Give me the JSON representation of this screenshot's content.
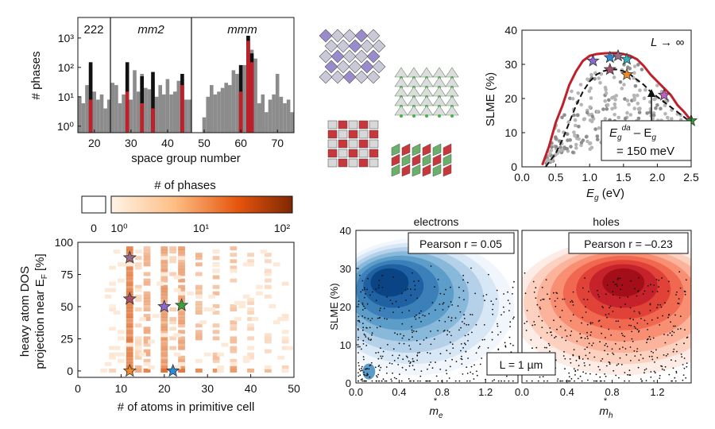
{
  "panel_a": {
    "ylabel": "# phases",
    "xlabel": "space group number",
    "groups": [
      "222",
      "mm2",
      "mmm"
    ],
    "yticks": [
      "10⁰",
      "10¹",
      "10²",
      "10³"
    ],
    "xticks": [
      "20",
      "30",
      "40",
      "50",
      "60",
      "70"
    ]
  },
  "panel_b": {
    "colorbar_title": "# of phases",
    "colorbar_zero": "0",
    "colorbar_ticks": [
      "10⁰",
      "10¹",
      "10²"
    ],
    "ylabel_line1": "heavy atom DOS",
    "ylabel_line2": "projection near E",
    "ylabel_sub": "F",
    "ylabel_tail": " [%]",
    "xlabel": "# of atoms in primitive cell",
    "xticks": [
      "0",
      "10",
      "20",
      "30",
      "40",
      "50"
    ],
    "yticks": [
      "0",
      "25",
      "50",
      "75",
      "100"
    ]
  },
  "panel_c": {
    "annotation": "L → ∞",
    "ylabel": "SLME (%)",
    "xlabel_main": "E",
    "xlabel_sub": "g",
    "xlabel_tail": " (eV)",
    "box_line1": "E",
    "box_line1_sub": "g",
    "box_line1_sup": "da",
    "box_line1_tail": " – E",
    "box_line1_sub2": "g",
    "box_line2": "= 150 meV",
    "xticks": [
      "0.0",
      "0.5",
      "1.0",
      "1.5",
      "2.0",
      "2.5"
    ],
    "yticks": [
      "0",
      "10",
      "20",
      "30",
      "40"
    ]
  },
  "panel_d": {
    "title_left": "electrons",
    "title_right": "holes",
    "ylabel": "SLME (%)",
    "pearson_left": "Pearson r = 0.05",
    "pearson_right": "Pearson r = –0.23",
    "thickness": "L = 1 µm",
    "xlabel_left": "m",
    "xlabel_left_sub": "e",
    "xlabel_right": "m",
    "xlabel_right_sub": "h",
    "star": "*",
    "xticks_left": [
      "0.0",
      "0.4",
      "0.8",
      "1.2"
    ],
    "xticks_right": [
      "0.0",
      "0.4",
      "0.8",
      "1.2"
    ],
    "yticks": [
      "0",
      "10",
      "20",
      "30",
      "40"
    ]
  },
  "colors": {
    "gray": "#8c8c8c",
    "black": "#111111",
    "red": "#c0202a",
    "orange_dark": "#8a2d05",
    "orange_light": "#fde3c8",
    "blue_dark": "#08306b",
    "red_dark": "#a50f15"
  },
  "chart_data": [
    {
      "type": "bar",
      "panel": "a",
      "xlabel": "space group number",
      "ylabel": "# phases",
      "yscale": "log",
      "xlim": [
        16,
        74
      ],
      "ylim": [
        1,
        3000
      ],
      "x": [
        16,
        17,
        18,
        19,
        20,
        21,
        22,
        23,
        24,
        25,
        26,
        27,
        28,
        29,
        30,
        31,
        32,
        33,
        34,
        35,
        36,
        37,
        38,
        39,
        40,
        41,
        42,
        43,
        44,
        45,
        46,
        47,
        48,
        49,
        50,
        51,
        52,
        53,
        54,
        55,
        56,
        57,
        58,
        59,
        60,
        61,
        62,
        63,
        64,
        65,
        66,
        67,
        68,
        69,
        70,
        71,
        72,
        73,
        74
      ],
      "series": [
        {
          "name": "gray",
          "values": [
            10,
            6,
            25,
            120,
            15,
            8,
            12,
            4,
            8,
            30,
            25,
            6,
            12,
            60,
            8,
            80,
            15,
            60,
            20,
            18,
            40,
            10,
            25,
            12,
            40,
            12,
            15,
            35,
            40,
            8,
            8,
            0,
            0,
            0,
            2,
            10,
            25,
            12,
            15,
            20,
            30,
            25,
            80,
            60,
            12,
            120,
            1500,
            400,
            200,
            6,
            12,
            3,
            8,
            12,
            60,
            10,
            6,
            8,
            3
          ]
        },
        {
          "name": "black",
          "values": [
            0,
            0,
            0,
            150,
            0,
            0,
            0,
            0,
            0,
            0,
            0,
            0,
            0,
            150,
            0,
            0,
            0,
            50,
            0,
            0,
            70,
            0,
            0,
            0,
            0,
            0,
            0,
            0,
            60,
            0,
            0,
            0,
            0,
            0,
            0,
            0,
            0,
            0,
            0,
            0,
            0,
            0,
            0,
            0,
            120,
            0,
            4000,
            300,
            0,
            0,
            0,
            0,
            0,
            0,
            0,
            0,
            0,
            0,
            0
          ]
        },
        {
          "name": "red",
          "values": [
            0,
            0,
            0,
            8,
            0,
            0,
            0,
            0,
            0,
            0,
            0,
            0,
            0,
            15,
            0,
            0,
            0,
            6,
            0,
            0,
            4,
            0,
            0,
            0,
            0,
            0,
            0,
            0,
            25,
            0,
            0,
            0,
            0,
            0,
            0,
            0,
            0,
            0,
            0,
            0,
            0,
            0,
            0,
            0,
            15,
            0,
            800,
            150,
            0,
            0,
            0,
            0,
            0,
            0,
            0,
            0,
            0,
            0,
            0
          ]
        }
      ]
    },
    {
      "type": "heatmap",
      "panel": "b",
      "title": "# of phases",
      "xlabel": "# of atoms in primitive cell",
      "ylabel": "heavy atom DOS projection near E_F [%]",
      "xlim": [
        0,
        50
      ],
      "ylim": [
        -5,
        100
      ],
      "columns": [
        {
          "x": 8,
          "count": 1
        },
        {
          "x": 12,
          "count": 100
        },
        {
          "x": 14,
          "count": 5
        },
        {
          "x": 16,
          "count": 20
        },
        {
          "x": 20,
          "count": 40
        },
        {
          "x": 22,
          "count": 6
        },
        {
          "x": 24,
          "count": 30
        },
        {
          "x": 28,
          "count": 15
        },
        {
          "x": 32,
          "count": 12
        },
        {
          "x": 36,
          "count": 10
        },
        {
          "x": 40,
          "count": 4
        },
        {
          "x": 44,
          "count": 3
        },
        {
          "x": 48,
          "count": 2
        }
      ],
      "stars": [
        {
          "x": 12,
          "y": 88,
          "color": "#9a6a8a"
        },
        {
          "x": 12,
          "y": 56,
          "color": "#a8506a"
        },
        {
          "x": 12,
          "y": 0,
          "color": "#f08a28"
        },
        {
          "x": 20,
          "y": 50,
          "color": "#8a6ad0"
        },
        {
          "x": 24,
          "y": 51,
          "color": "#3aa03a"
        },
        {
          "x": 22,
          "y": 0,
          "color": "#2a8ad8"
        }
      ]
    },
    {
      "type": "line",
      "panel": "c",
      "xlabel": "E_g (eV)",
      "ylabel": "SLME (%)",
      "xlim": [
        0,
        2.5
      ],
      "ylim": [
        0,
        40
      ],
      "series": [
        {
          "name": "red",
          "x": [
            0.3,
            0.4,
            0.5,
            0.6,
            0.7,
            0.8,
            0.9,
            1.0,
            1.1,
            1.2,
            1.3,
            1.4,
            1.5,
            1.6,
            1.7,
            1.8,
            1.9,
            2.0,
            2.1,
            2.2,
            2.3,
            2.4,
            2.5
          ],
          "values": [
            0.5,
            6,
            13,
            18,
            24,
            28,
            31,
            32.5,
            33,
            33.2,
            33.3,
            33.3,
            33,
            32.5,
            31.5,
            29.5,
            27,
            25,
            23,
            21,
            18,
            16,
            13.5
          ]
        },
        {
          "name": "dashed",
          "x": [
            0.35,
            0.5,
            0.6,
            0.7,
            0.8,
            0.9,
            1.0,
            1.1,
            1.2,
            1.3,
            1.4,
            1.5,
            1.6,
            1.7,
            1.8,
            1.9,
            2.0,
            2.1,
            2.2,
            2.3,
            2.4,
            2.5
          ],
          "values": [
            0,
            4,
            8,
            13,
            18,
            22,
            25,
            27,
            28,
            28.5,
            28.5,
            28,
            27,
            25.5,
            24,
            22,
            20.5,
            19,
            17.5,
            16,
            14.5,
            13
          ]
        }
      ],
      "stars": [
        {
          "x": 1.05,
          "y": 31,
          "color": "#8a6ad0"
        },
        {
          "x": 1.3,
          "y": 32,
          "color": "#2a8ad8"
        },
        {
          "x": 1.42,
          "y": 32.5,
          "color": "#9a6a8a"
        },
        {
          "x": 1.55,
          "y": 31.5,
          "color": "#30b0c0"
        },
        {
          "x": 1.3,
          "y": 28.5,
          "color": "#a8506a"
        },
        {
          "x": 1.55,
          "y": 27,
          "color": "#f08a28"
        },
        {
          "x": 2.1,
          "y": 21,
          "color": "#c060c0"
        },
        {
          "x": 2.5,
          "y": 13.5,
          "color": "#3aa03a"
        }
      ]
    },
    {
      "type": "scatter",
      "panel": "d",
      "ylabel": "SLME (%)",
      "ylim": [
        0,
        40
      ],
      "xlim": [
        0,
        1.5
      ],
      "subplots": [
        {
          "title": "electrons",
          "xlabel": "m*_e",
          "pearson_r": 0.05,
          "density_peak": [
            0.25,
            28
          ]
        },
        {
          "title": "holes",
          "xlabel": "m*_h",
          "pearson_r": -0.23,
          "density_peak": [
            0.9,
            28
          ]
        }
      ]
    }
  ]
}
